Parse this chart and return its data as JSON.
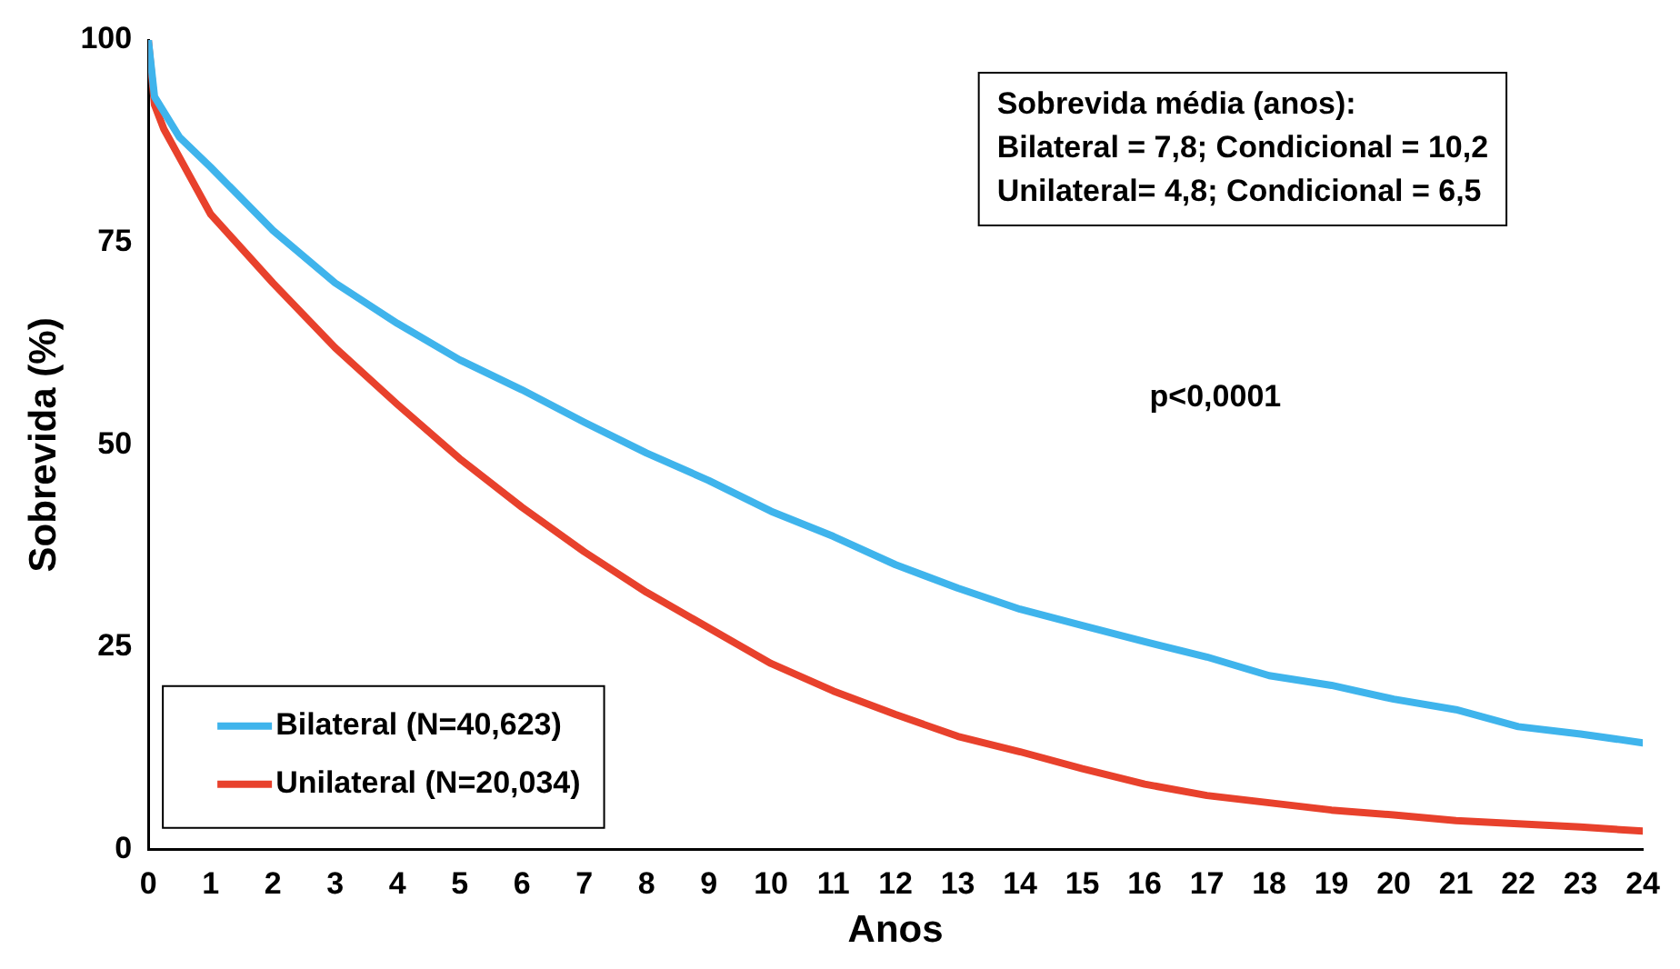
{
  "chart_data": {
    "type": "line",
    "xlabel": "Anos",
    "ylabel": "Sobrevida (%)",
    "xlim": [
      0,
      24
    ],
    "xticks": [
      0,
      1,
      2,
      3,
      4,
      5,
      6,
      7,
      8,
      9,
      10,
      11,
      12,
      13,
      14,
      15,
      16,
      17,
      18,
      19,
      20,
      21,
      22,
      23,
      24
    ],
    "ylim": [
      0,
      100
    ],
    "yticks": [
      0,
      25,
      50,
      75,
      100
    ],
    "grid": false,
    "legend": "bottom left",
    "marker": "none",
    "line_style": "solid",
    "annotations": [
      "Sobrevida média (anos):",
      "Bilateral = 7,8; Condicional = 10,2",
      "Unilateral= 4,8; Condicional = 6,5",
      "p<0,0001"
    ],
    "series": [
      {
        "name": "Bilateral (N=40,623)",
        "color": "#3fb4ec",
        "x": [
          0,
          0.1,
          0.5,
          1,
          2,
          3,
          4,
          5,
          6,
          7,
          8,
          9,
          10,
          11,
          12,
          13,
          14,
          15,
          16,
          17,
          18,
          19,
          20,
          21,
          22,
          23,
          24
        ],
        "values": [
          100,
          93,
          88,
          84.3,
          76.5,
          70,
          65,
          60.5,
          56.8,
          52.8,
          49,
          45.6,
          41.8,
          38.7,
          35.2,
          32.3,
          29.7,
          27.7,
          25.7,
          23.8,
          21.5,
          20.3,
          18.6,
          17.3,
          15.2,
          14.3,
          13.2
        ]
      },
      {
        "name": "Unilateral (N=20,034)",
        "color": "#e8412c",
        "x": [
          0,
          0.1,
          0.25,
          0.5,
          1,
          2,
          3,
          4,
          5,
          6,
          7,
          8,
          9,
          10,
          11,
          12,
          13,
          14,
          15,
          16,
          17,
          18,
          19,
          20,
          21,
          22,
          23,
          24
        ],
        "values": [
          100,
          92,
          89,
          85.5,
          78.5,
          70,
          62,
          55,
          48.3,
          42.3,
          36.8,
          31.8,
          27.4,
          23,
          19.6,
          16.7,
          14,
          12.1,
          10,
          8.1,
          6.7,
          5.8,
          4.9,
          4.3,
          3.6,
          3.2,
          2.8,
          2.3
        ]
      }
    ]
  }
}
